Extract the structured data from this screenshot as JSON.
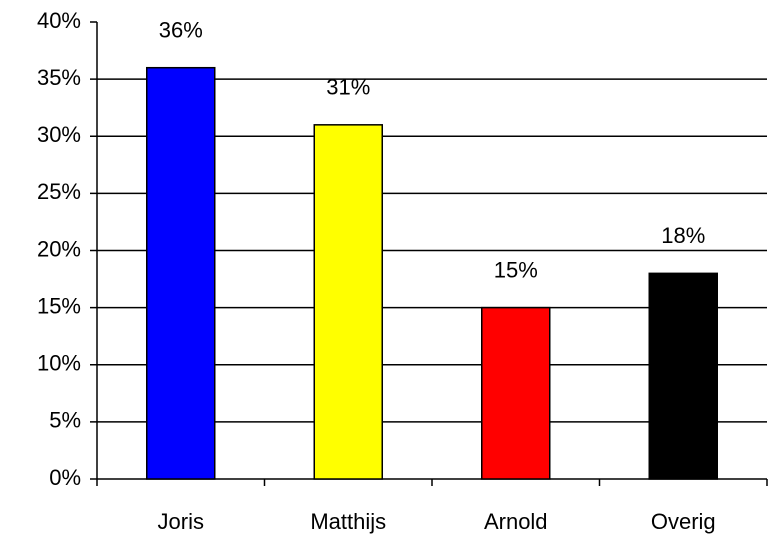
{
  "chart_data": {
    "type": "bar",
    "categories": [
      "Joris",
      "Matthijs",
      "Arnold",
      "Overig"
    ],
    "values": [
      36,
      31,
      15,
      18
    ],
    "value_labels": [
      "36%",
      "31%",
      "15%",
      "18%"
    ],
    "colors": [
      "#0000ff",
      "#ffff00",
      "#ff0000",
      "#000000"
    ],
    "ylim": [
      0,
      40
    ],
    "yticks": [
      {
        "value": 0,
        "label": "0%"
      },
      {
        "value": 5,
        "label": "5%"
      },
      {
        "value": 10,
        "label": "10%"
      },
      {
        "value": 15,
        "label": "15%"
      },
      {
        "value": 20,
        "label": "20%"
      },
      {
        "value": 25,
        "label": "25%"
      },
      {
        "value": 30,
        "label": "30%"
      },
      {
        "value": 35,
        "label": "35%"
      },
      {
        "value": 40,
        "label": "40%"
      }
    ],
    "grid": true
  }
}
